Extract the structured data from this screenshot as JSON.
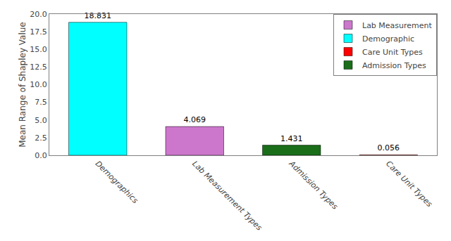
{
  "chart_data": {
    "type": "bar",
    "categories": [
      "Demographics",
      "Lab Measurement Types",
      "Admission Types",
      "Care Unit Types"
    ],
    "series": [
      {
        "name": "Lab Measurement",
        "color": "#CC77CC",
        "values": [
          null,
          4.069,
          null,
          null
        ]
      },
      {
        "name": "Demographic",
        "color": "#00FFFF",
        "values": [
          18.831,
          null,
          null,
          null
        ]
      },
      {
        "name": "Care Unit Types",
        "color": "#FF0000",
        "values": [
          null,
          null,
          null,
          0.056
        ]
      },
      {
        "name": "Admission Types",
        "color": "#1A6E1A",
        "values": [
          null,
          null,
          1.431,
          null
        ]
      }
    ],
    "ylabel": "Mean Range of Shapley Value",
    "ylim": [
      0,
      20
    ],
    "yticks": [
      {
        "value": 0,
        "label": "0.0"
      },
      2.5,
      {
        "value": 5,
        "label": "5.0"
      },
      7.5,
      {
        "value": 10,
        "label": "10.0"
      },
      12.5,
      {
        "value": 15,
        "label": "15.0"
      },
      17.5,
      {
        "value": 20,
        "label": "20.0"
      }
    ],
    "data_labels": true,
    "grid": false,
    "legend": "upper right"
  }
}
